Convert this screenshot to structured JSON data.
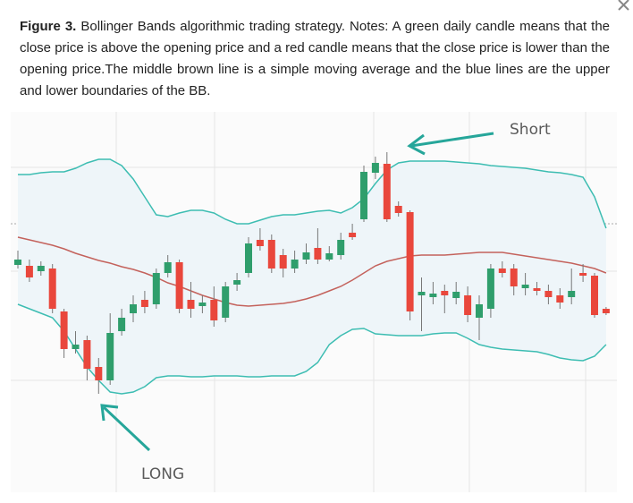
{
  "caption": {
    "label": "Figure 3.",
    "text": "Bollinger Bands algorithmic trading strategy. Notes: A green daily candle means that the close price is above the opening price and a red candle means that the close price is lower than the opening price.The middle brown line is a simple moving average and the blue lines are the upper and lower boundaries of the BB."
  },
  "chart_data": {
    "type": "candlestick",
    "ylim": [
      0,
      425
    ],
    "up_color": "#2f9e6c",
    "down_color": "#e9473c",
    "open": [
      254,
      253,
      247,
      250,
      202,
      160,
      170,
      140,
      125,
      180,
      200,
      215,
      210,
      245,
      257,
      215,
      208,
      215,
      195,
      232,
      245,
      282,
      282,
      265,
      250,
      260,
      273,
      260,
      265,
      290,
      305,
      357,
      367,
      320,
      313,
      220,
      218,
      225,
      217,
      220,
      195,
      205,
      250,
      250,
      228,
      228,
      225,
      220,
      218,
      245,
      242,
      205
    ],
    "high": [
      270,
      260,
      258,
      255,
      205,
      180,
      175,
      150,
      200,
      205,
      220,
      225,
      250,
      265,
      260,
      235,
      220,
      230,
      235,
      245,
      285,
      295,
      288,
      272,
      270,
      278,
      295,
      275,
      290,
      300,
      365,
      375,
      380,
      325,
      315,
      240,
      235,
      232,
      235,
      230,
      220,
      255,
      258,
      255,
      245,
      235,
      232,
      228,
      250,
      255,
      245,
      207
    ],
    "low": [
      250,
      235,
      242,
      200,
      150,
      155,
      125,
      110,
      120,
      175,
      190,
      200,
      205,
      240,
      200,
      195,
      200,
      185,
      190,
      225,
      240,
      270,
      245,
      240,
      245,
      255,
      255,
      258,
      260,
      282,
      302,
      350,
      302,
      308,
      192,
      180,
      210,
      200,
      210,
      190,
      170,
      195,
      240,
      220,
      220,
      220,
      210,
      205,
      210,
      235,
      195,
      198
    ],
    "close": [
      260,
      240,
      253,
      205,
      160,
      165,
      138,
      125,
      178,
      195,
      210,
      207,
      245,
      257,
      205,
      205,
      212,
      192,
      230,
      237,
      278,
      275,
      250,
      250,
      260,
      268,
      260,
      267,
      282,
      285,
      358,
      368,
      305,
      312,
      202,
      224,
      222,
      220,
      224,
      198,
      210,
      250,
      245,
      230,
      232,
      225,
      218,
      212,
      225,
      242,
      198,
      200
    ],
    "series": [
      {
        "color": "#3dbdb2",
        "values": [
          355,
          355,
          357,
          358,
          358,
          362,
          368,
          372,
          372,
          365,
          350,
          330,
          310,
          308,
          312,
          315,
          315,
          312,
          305,
          300,
          300,
          304,
          308,
          310,
          310,
          312,
          314,
          315,
          312,
          318,
          328,
          345,
          360,
          368,
          370,
          370,
          370,
          370,
          369,
          368,
          367,
          365,
          364,
          363,
          362,
          360,
          358,
          357,
          355,
          352,
          330,
          295
        ]
      },
      {
        "color": "#c4625c",
        "values": [
          285,
          282,
          279,
          276,
          272,
          267,
          263,
          259,
          256,
          252,
          249,
          245,
          240,
          234,
          230,
          225,
          220,
          216,
          212,
          209,
          208,
          209,
          210,
          211,
          213,
          216,
          220,
          225,
          230,
          237,
          245,
          253,
          258,
          261,
          264,
          265,
          265,
          265,
          266,
          267,
          268,
          268,
          268,
          266,
          264,
          262,
          260,
          258,
          256,
          253,
          250,
          245
        ]
      },
      {
        "color": "#3dbdb2",
        "values": [
          210,
          205,
          200,
          195,
          180,
          160,
          140,
          125,
          112,
          110,
          112,
          118,
          128,
          130,
          130,
          129,
          129,
          130,
          130,
          130,
          129,
          129,
          130,
          130,
          130,
          135,
          145,
          165,
          175,
          182,
          183,
          177,
          176,
          175,
          175,
          175,
          177,
          178,
          178,
          172,
          165,
          162,
          160,
          159,
          158,
          157,
          154,
          150,
          148,
          147,
          152,
          165
        ]
      }
    ],
    "band_fill": "#eef5f9",
    "annotations": [
      "Short",
      "LONG"
    ]
  }
}
